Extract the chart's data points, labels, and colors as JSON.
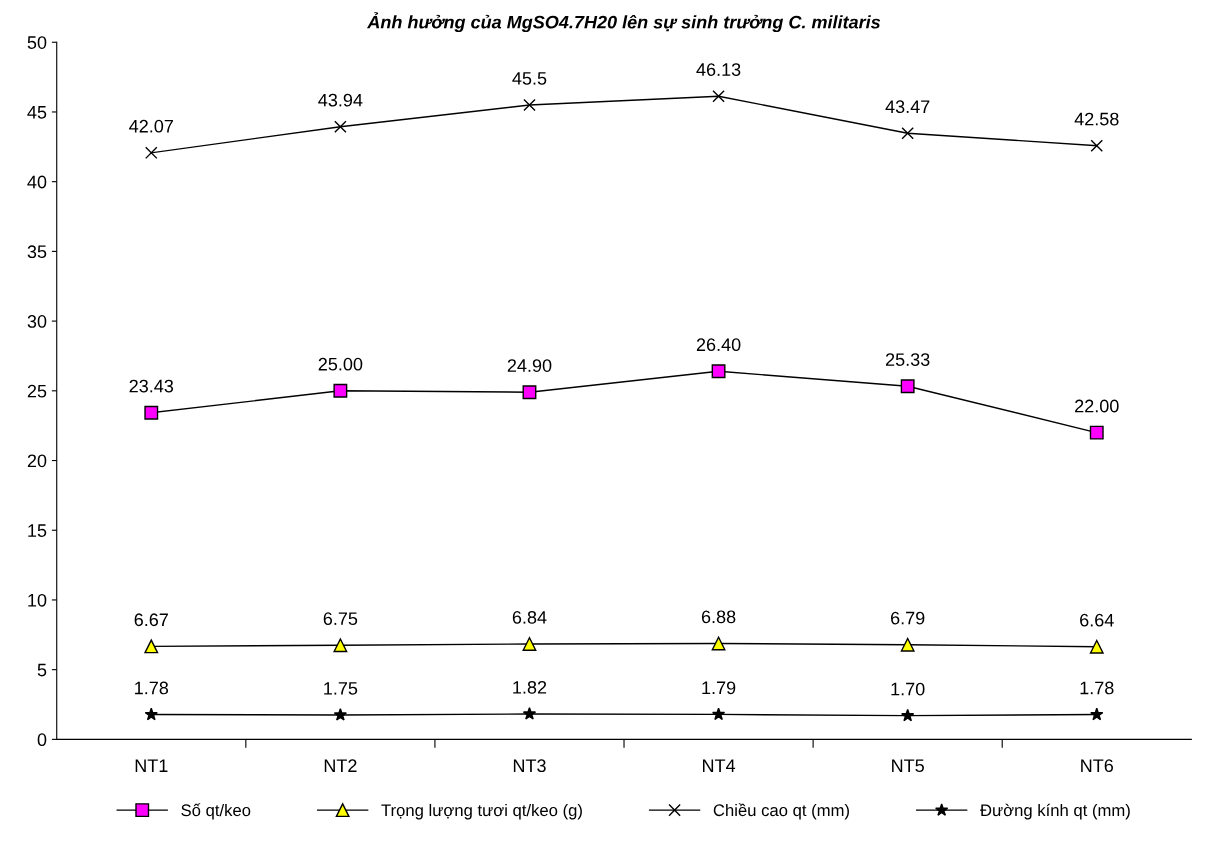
{
  "chart_data": {
    "type": "line",
    "title": "Ảnh hưởng của MgSO4.7H20 lên sự sinh trưởng C. militaris",
    "categories": [
      "NT1",
      "NT2",
      "NT3",
      "NT4",
      "NT5",
      "NT6"
    ],
    "ylim": [
      0,
      50
    ],
    "yticks": [
      0,
      5,
      10,
      15,
      20,
      25,
      30,
      35,
      40,
      45,
      50
    ],
    "grid": false,
    "legend": "bottom",
    "series": [
      {
        "name": "Số qt/keo",
        "color": "#ff00ff",
        "marker": "square",
        "values": [
          23.43,
          25.0,
          24.9,
          26.4,
          25.33,
          22.0
        ],
        "value_labels": [
          "23.43",
          "25.00",
          "24.90",
          "26.40",
          "25.33",
          "22.00"
        ]
      },
      {
        "name": "Trọng lượng tươi qt/keo (g)",
        "color": "#ffff00",
        "marker": "triangle",
        "values": [
          6.67,
          6.75,
          6.84,
          6.88,
          6.79,
          6.64
        ],
        "value_labels": [
          "6.67",
          "6.75",
          "6.84",
          "6.88",
          "6.79",
          "6.64"
        ]
      },
      {
        "name": "Chiều cao qt (mm)",
        "color": "#000000",
        "marker": "cross",
        "values": [
          42.07,
          43.94,
          45.5,
          46.13,
          43.47,
          42.58
        ],
        "value_labels": [
          "42.07",
          "43.94",
          "45.5",
          "46.13",
          "43.47",
          "42.58"
        ]
      },
      {
        "name": "Đường kính qt (mm)",
        "color": "#000000",
        "marker": "star",
        "values": [
          1.78,
          1.75,
          1.82,
          1.79,
          1.7,
          1.78
        ],
        "value_labels": [
          "1.78",
          "1.75",
          "1.82",
          "1.79",
          "1.70",
          "1.78"
        ]
      }
    ]
  }
}
